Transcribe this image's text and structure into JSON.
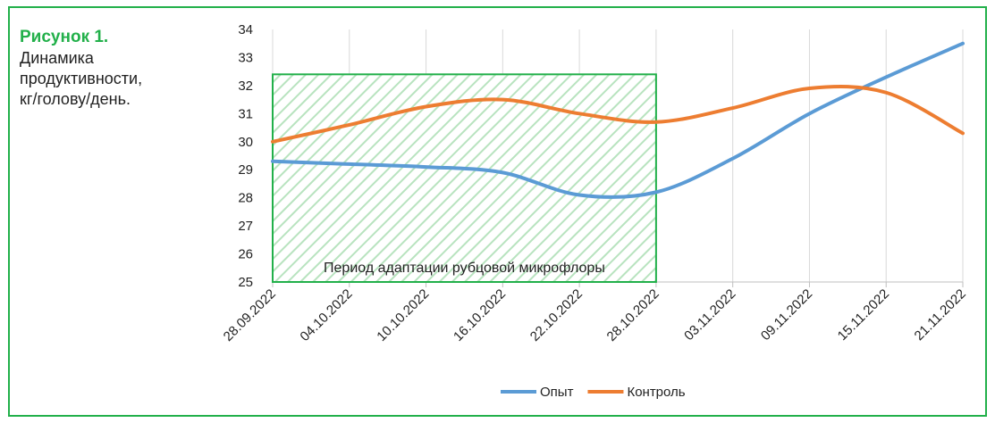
{
  "figure_label": "Рисунок 1.",
  "caption": [
    "Динамика",
    "продуктивности,",
    "кг/голову/день."
  ],
  "chart_data": {
    "type": "line",
    "categories": [
      "28.09.2022",
      "04.10.2022",
      "10.10.2022",
      "16.10.2022",
      "22.10.2022",
      "28.10.2022",
      "03.11.2022",
      "09.11.2022",
      "15.11.2022",
      "21.11.2022"
    ],
    "series": [
      {
        "name": "Опыт",
        "color": "#5b9bd5",
        "values": [
          29.3,
          29.2,
          29.1,
          28.9,
          28.1,
          28.2,
          29.4,
          31.0,
          32.3,
          33.5
        ]
      },
      {
        "name": "Контроль",
        "color": "#ed7d31",
        "values": [
          30.0,
          30.6,
          31.25,
          31.5,
          31.0,
          30.7,
          31.2,
          31.9,
          31.75,
          30.3
        ]
      }
    ],
    "ylim": [
      25,
      34
    ],
    "yticks": [
      25,
      26,
      27,
      28,
      29,
      30,
      31,
      32,
      33,
      34
    ],
    "grid": "x",
    "smooth": true,
    "legend": "bottom",
    "highlight": {
      "label": "Период адаптации рубцовой микрофлоры",
      "x_start": "28.09.2022",
      "x_end": "28.10.2022",
      "y_top": 32.4,
      "color": "#22b04a"
    }
  }
}
